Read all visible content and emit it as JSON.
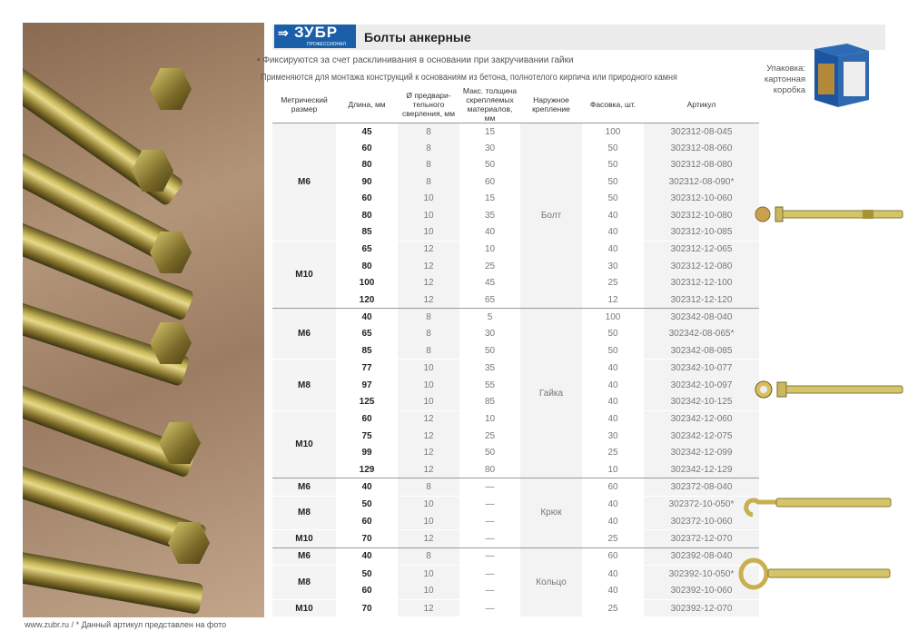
{
  "brand": {
    "name": "ЗУБР",
    "sub": "ПРОФЕССИОНАЛ",
    "color": "#1b5fa8"
  },
  "title": "Болты анкерные",
  "bullet": "• Фиксируются за счет расклинивания в основании при закручивании гайки",
  "description": "Применяются для монтажа конструкций к основаниям из бетона, полнотелого кирпича или природного камня",
  "packaging": {
    "label": "Упаковка:",
    "value": "картонная коробка"
  },
  "columns": [
    "Метрический размер",
    "Длина, мм",
    "Ø предвари-тельного сверления, мм",
    "Макс. толщина скрепляемых материалов, мм",
    "Наружное крепление",
    "Фасовка, шт.",
    "Артикул"
  ],
  "sections": [
    {
      "fastening": "Болт",
      "groups": [
        {
          "size": "M6",
          "rows": [
            [
              "45",
              "8",
              "15",
              "100",
              "302312-08-045"
            ],
            [
              "60",
              "8",
              "30",
              "50",
              "302312-08-060"
            ],
            [
              "80",
              "8",
              "50",
              "50",
              "302312-08-080"
            ],
            [
              "90",
              "8",
              "60",
              "50",
              "302312-08-090*"
            ],
            [
              "60",
              "10",
              "15",
              "50",
              "302312-10-060"
            ],
            [
              "80",
              "10",
              "35",
              "40",
              "302312-10-080"
            ],
            [
              "85",
              "10",
              "40",
              "40",
              "302312-10-085"
            ]
          ]
        },
        {
          "size": "M10",
          "rows": [
            [
              "65",
              "12",
              "10",
              "40",
              "302312-12-065"
            ],
            [
              "80",
              "12",
              "25",
              "30",
              "302312-12-080"
            ],
            [
              "100",
              "12",
              "45",
              "25",
              "302312-12-100"
            ],
            [
              "120",
              "12",
              "65",
              "12",
              "302312-12-120"
            ]
          ]
        }
      ]
    },
    {
      "fastening": "Гайка",
      "groups": [
        {
          "size": "M6",
          "rows": [
            [
              "40",
              "8",
              "5",
              "100",
              "302342-08-040"
            ],
            [
              "65",
              "8",
              "30",
              "50",
              "302342-08-065*"
            ],
            [
              "85",
              "8",
              "50",
              "50",
              "302342-08-085"
            ]
          ]
        },
        {
          "size": "M8",
          "rows": [
            [
              "77",
              "10",
              "35",
              "40",
              "302342-10-077"
            ],
            [
              "97",
              "10",
              "55",
              "40",
              "302342-10-097"
            ],
            [
              "125",
              "10",
              "85",
              "40",
              "302342-10-125"
            ]
          ]
        },
        {
          "size": "M10",
          "rows": [
            [
              "60",
              "12",
              "10",
              "40",
              "302342-12-060"
            ],
            [
              "75",
              "12",
              "25",
              "30",
              "302342-12-075"
            ],
            [
              "99",
              "12",
              "50",
              "25",
              "302342-12-099"
            ],
            [
              "129",
              "12",
              "80",
              "10",
              "302342-12-129"
            ]
          ]
        }
      ]
    },
    {
      "fastening": "Крюк",
      "groups": [
        {
          "size": "M6",
          "rows": [
            [
              "40",
              "8",
              "—",
              "60",
              "302372-08-040"
            ]
          ]
        },
        {
          "size": "M8",
          "rows": [
            [
              "50",
              "10",
              "—",
              "40",
              "302372-10-050*"
            ],
            [
              "60",
              "10",
              "—",
              "40",
              "302372-10-060"
            ]
          ]
        },
        {
          "size": "M10",
          "rows": [
            [
              "70",
              "12",
              "—",
              "25",
              "302372-12-070"
            ]
          ]
        }
      ]
    },
    {
      "fastening": "Кольцо",
      "groups": [
        {
          "size": "M6",
          "rows": [
            [
              "40",
              "8",
              "—",
              "60",
              "302392-08-040"
            ]
          ]
        },
        {
          "size": "M8",
          "rows": [
            [
              "50",
              "10",
              "—",
              "40",
              "302392-10-050*"
            ],
            [
              "60",
              "10",
              "—",
              "40",
              "302392-10-060"
            ]
          ]
        },
        {
          "size": "M10",
          "rows": [
            [
              "70",
              "12",
              "—",
              "25",
              "302392-12-070"
            ]
          ]
        }
      ]
    }
  ],
  "footer": {
    "site": "www.zubr.ru",
    "separator": "/",
    "note": "* Данный артикул представлен на фото"
  }
}
